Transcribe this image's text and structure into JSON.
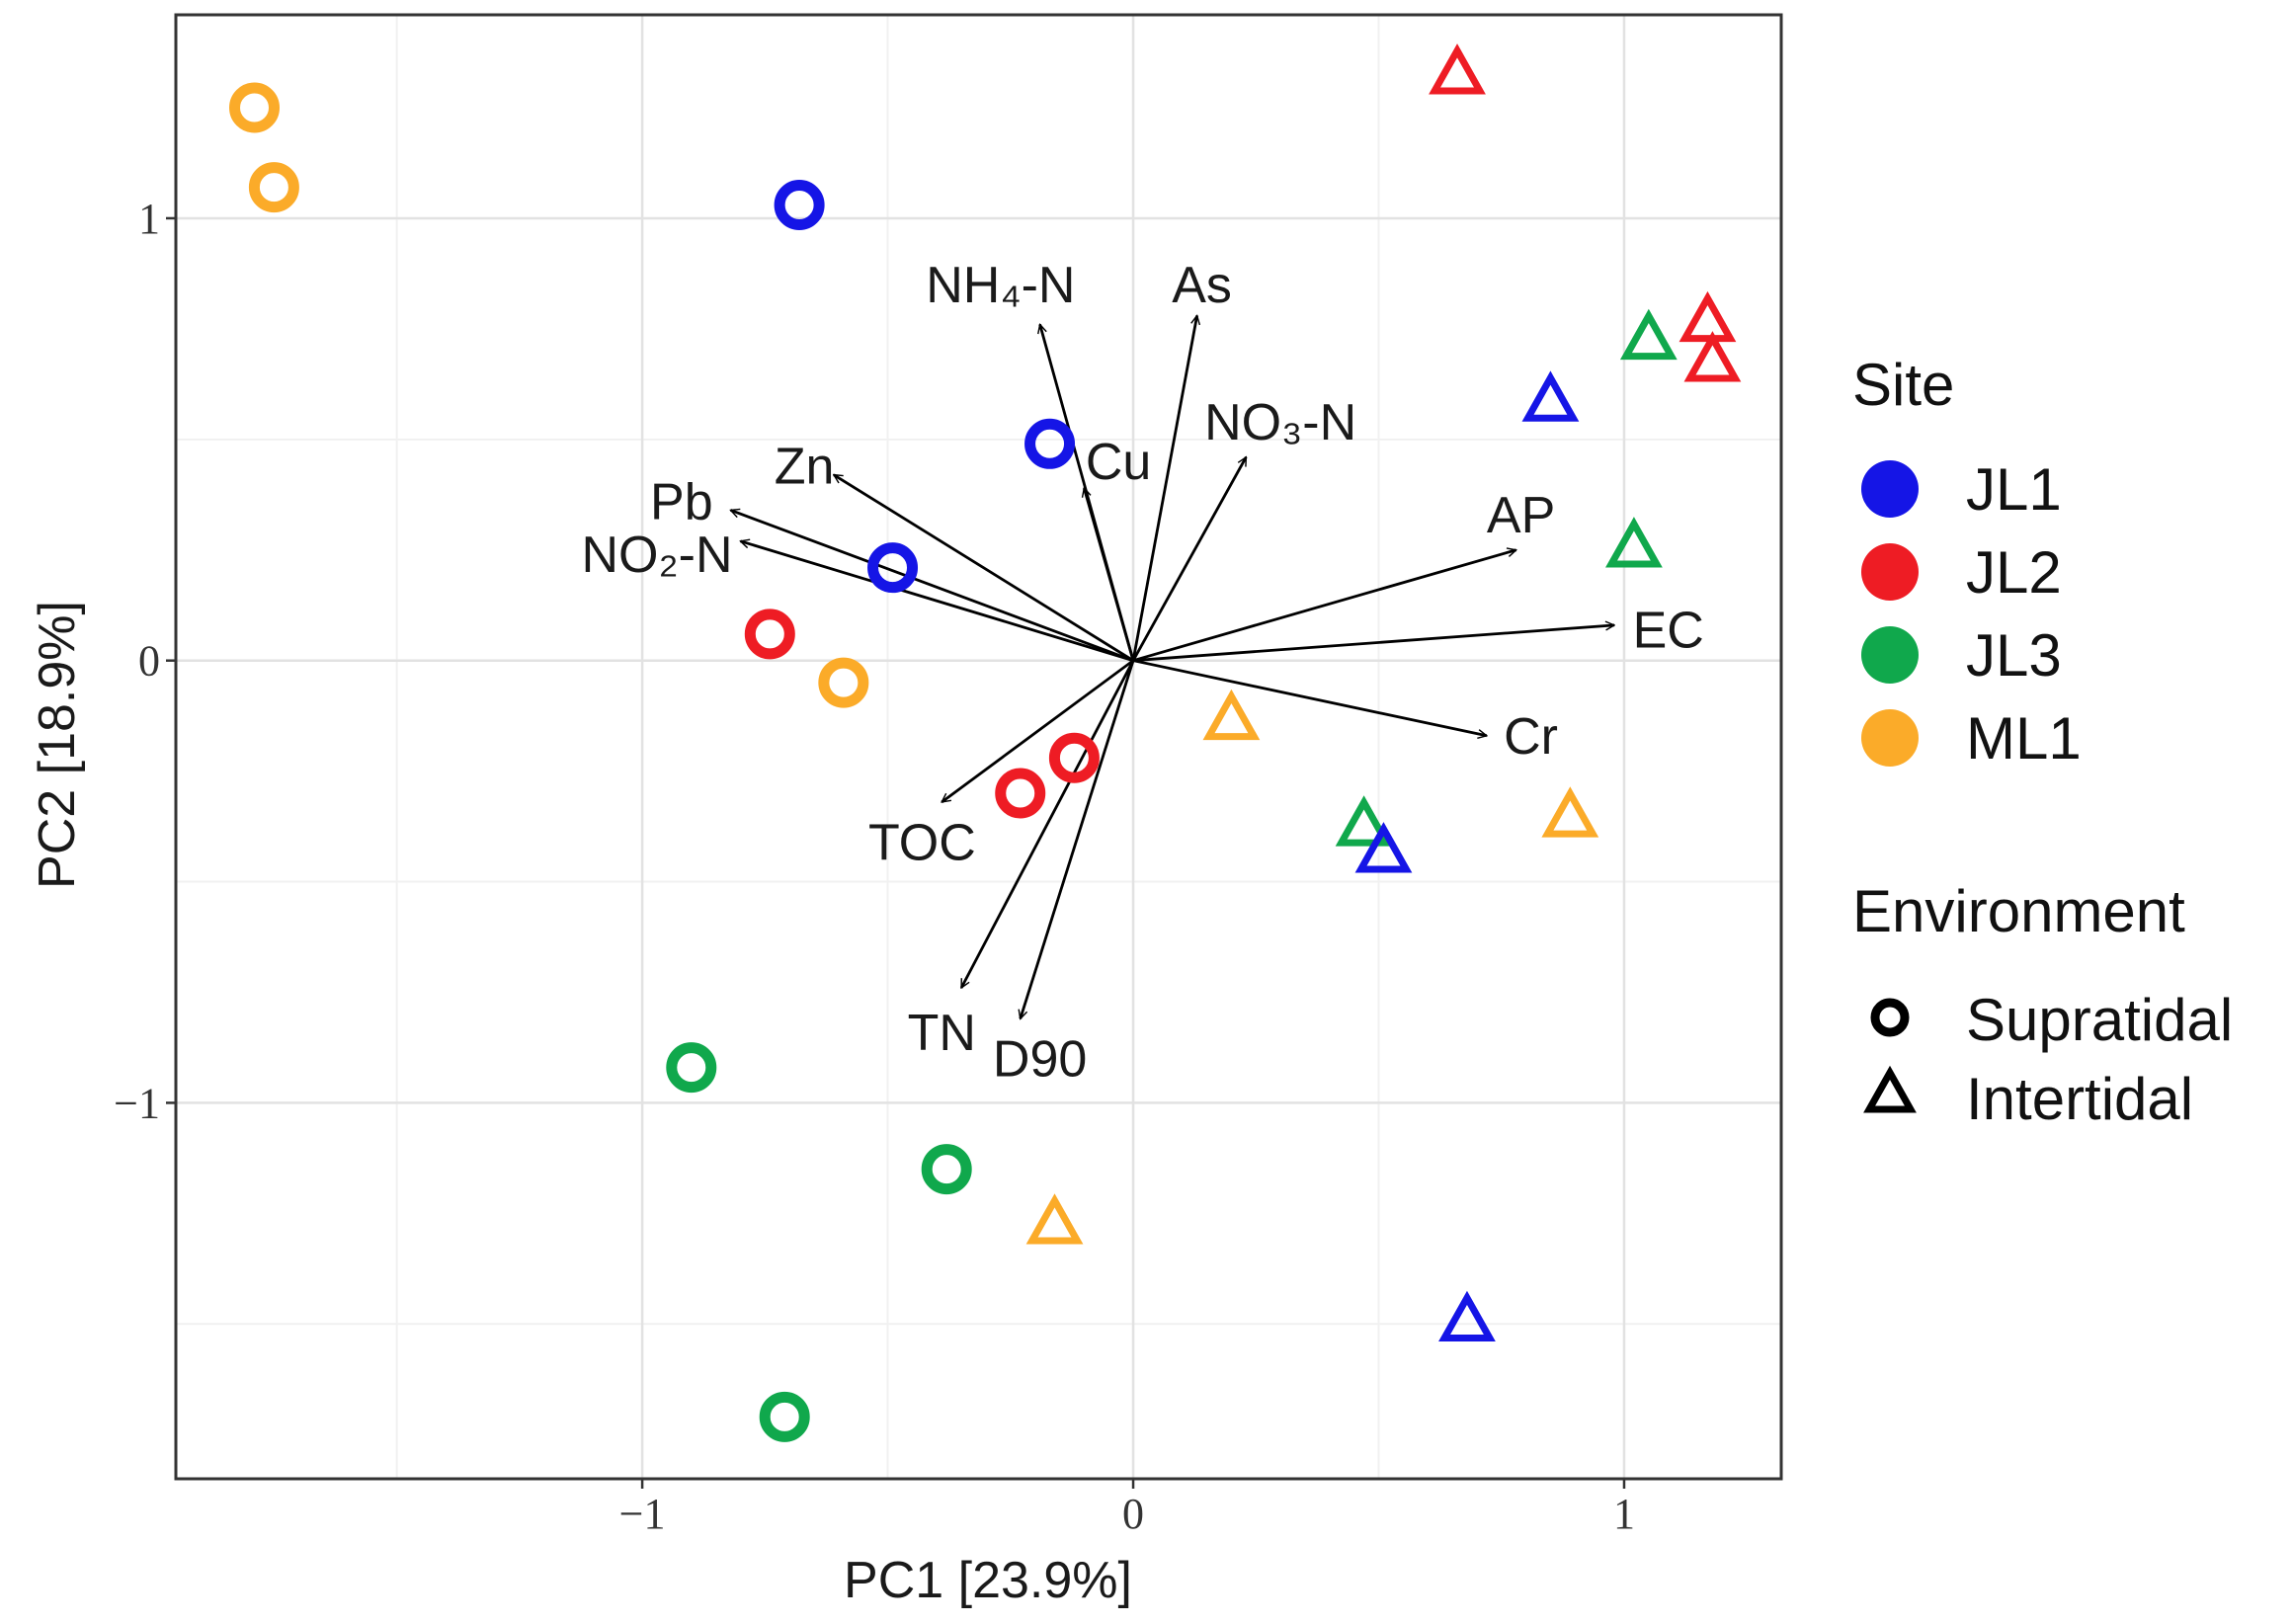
{
  "chart_data": {
    "type": "scatter",
    "subtype": "pca-biplot",
    "title": "",
    "xlabel": "PC1   [23.9%]",
    "ylabel": "PC2   [18.9%]",
    "xlim": [
      -1.95,
      1.32
    ],
    "ylim": [
      -1.85,
      1.46
    ],
    "xticks": [
      {
        "value": -1,
        "label": "−1"
      },
      {
        "value": 0,
        "label": "0"
      },
      {
        "value": 1,
        "label": "1"
      }
    ],
    "yticks": [
      {
        "value": -1,
        "label": "−1"
      },
      {
        "value": 0,
        "label": "0"
      },
      {
        "value": 1,
        "label": "1"
      }
    ],
    "grid": true,
    "colors": {
      "JL1": "#1515e6",
      "JL2": "#ee1c24",
      "JL3": "#10a84c",
      "ML1": "#fbab29"
    },
    "points": [
      {
        "site": "ML1",
        "env": "Supratidal",
        "x": -1.79,
        "y": 1.25
      },
      {
        "site": "ML1",
        "env": "Supratidal",
        "x": -1.75,
        "y": 1.07
      },
      {
        "site": "JL1",
        "env": "Supratidal",
        "x": -0.68,
        "y": 1.03
      },
      {
        "site": "JL1",
        "env": "Supratidal",
        "x": -0.17,
        "y": 0.49
      },
      {
        "site": "JL1",
        "env": "Supratidal",
        "x": -0.49,
        "y": 0.21
      },
      {
        "site": "JL2",
        "env": "Supratidal",
        "x": -0.74,
        "y": 0.06
      },
      {
        "site": "ML1",
        "env": "Supratidal",
        "x": -0.59,
        "y": -0.05
      },
      {
        "site": "JL2",
        "env": "Supratidal",
        "x": -0.12,
        "y": -0.22
      },
      {
        "site": "JL2",
        "env": "Supratidal",
        "x": -0.23,
        "y": -0.3
      },
      {
        "site": "JL3",
        "env": "Supratidal",
        "x": -0.9,
        "y": -0.92
      },
      {
        "site": "JL3",
        "env": "Supratidal",
        "x": -0.38,
        "y": -1.15
      },
      {
        "site": "JL3",
        "env": "Supratidal",
        "x": -0.71,
        "y": -1.71
      },
      {
        "site": "JL2",
        "env": "Intertidal",
        "x": 0.66,
        "y": 1.32
      },
      {
        "site": "JL2",
        "env": "Intertidal",
        "x": 1.17,
        "y": 0.76
      },
      {
        "site": "JL2",
        "env": "Intertidal",
        "x": 1.18,
        "y": 0.67
      },
      {
        "site": "JL3",
        "env": "Intertidal",
        "x": 1.05,
        "y": 0.72
      },
      {
        "site": "JL1",
        "env": "Intertidal",
        "x": 0.85,
        "y": 0.58
      },
      {
        "site": "JL3",
        "env": "Intertidal",
        "x": 1.02,
        "y": 0.25
      },
      {
        "site": "ML1",
        "env": "Intertidal",
        "x": 0.2,
        "y": -0.14
      },
      {
        "site": "JL3",
        "env": "Intertidal",
        "x": 0.47,
        "y": -0.38
      },
      {
        "site": "JL1",
        "env": "Intertidal",
        "x": 0.51,
        "y": -0.44
      },
      {
        "site": "ML1",
        "env": "Intertidal",
        "x": 0.89,
        "y": -0.36
      },
      {
        "site": "ML1",
        "env": "Intertidal",
        "x": -0.16,
        "y": -1.28
      },
      {
        "site": "JL1",
        "env": "Intertidal",
        "x": 0.68,
        "y": -1.5
      }
    ],
    "loadings": [
      {
        "label": "NH₄-N",
        "x": -0.19,
        "y": 0.76,
        "lx": -0.27,
        "ly": 0.85
      },
      {
        "label": "As",
        "x": 0.13,
        "y": 0.78,
        "lx": 0.14,
        "ly": 0.85
      },
      {
        "label": "Cu",
        "x": -0.1,
        "y": 0.39,
        "lx": -0.03,
        "ly": 0.45
      },
      {
        "label": "NO₃-N",
        "x": 0.23,
        "y": 0.46,
        "lx": 0.3,
        "ly": 0.54
      },
      {
        "label": "Zn",
        "x": -0.61,
        "y": 0.42,
        "lx": -0.67,
        "ly": 0.44
      },
      {
        "label": "Pb",
        "x": -0.82,
        "y": 0.34,
        "lx": -0.92,
        "ly": 0.36
      },
      {
        "label": "NO₂-N",
        "x": -0.8,
        "y": 0.27,
        "lx": -0.97,
        "ly": 0.24
      },
      {
        "label": "AP",
        "x": 0.78,
        "y": 0.25,
        "lx": 0.79,
        "ly": 0.33
      },
      {
        "label": "EC",
        "x": 0.98,
        "y": 0.08,
        "lx": 1.09,
        "ly": 0.07
      },
      {
        "label": "Cr",
        "x": 0.72,
        "y": -0.17,
        "lx": 0.81,
        "ly": -0.17
      },
      {
        "label": "TOC",
        "x": -0.39,
        "y": -0.32,
        "lx": -0.43,
        "ly": -0.41
      },
      {
        "label": "TN",
        "x": -0.35,
        "y": -0.74,
        "lx": -0.39,
        "ly": -0.84
      },
      {
        "label": "D90",
        "x": -0.23,
        "y": -0.81,
        "lx": -0.19,
        "ly": -0.9
      }
    ],
    "legend": {
      "position": "right",
      "site_title": "Site",
      "sites": [
        "JL1",
        "JL2",
        "JL3",
        "ML1"
      ],
      "env_title": "Environment",
      "envs": [
        "Supratidal",
        "Intertidal"
      ]
    }
  }
}
